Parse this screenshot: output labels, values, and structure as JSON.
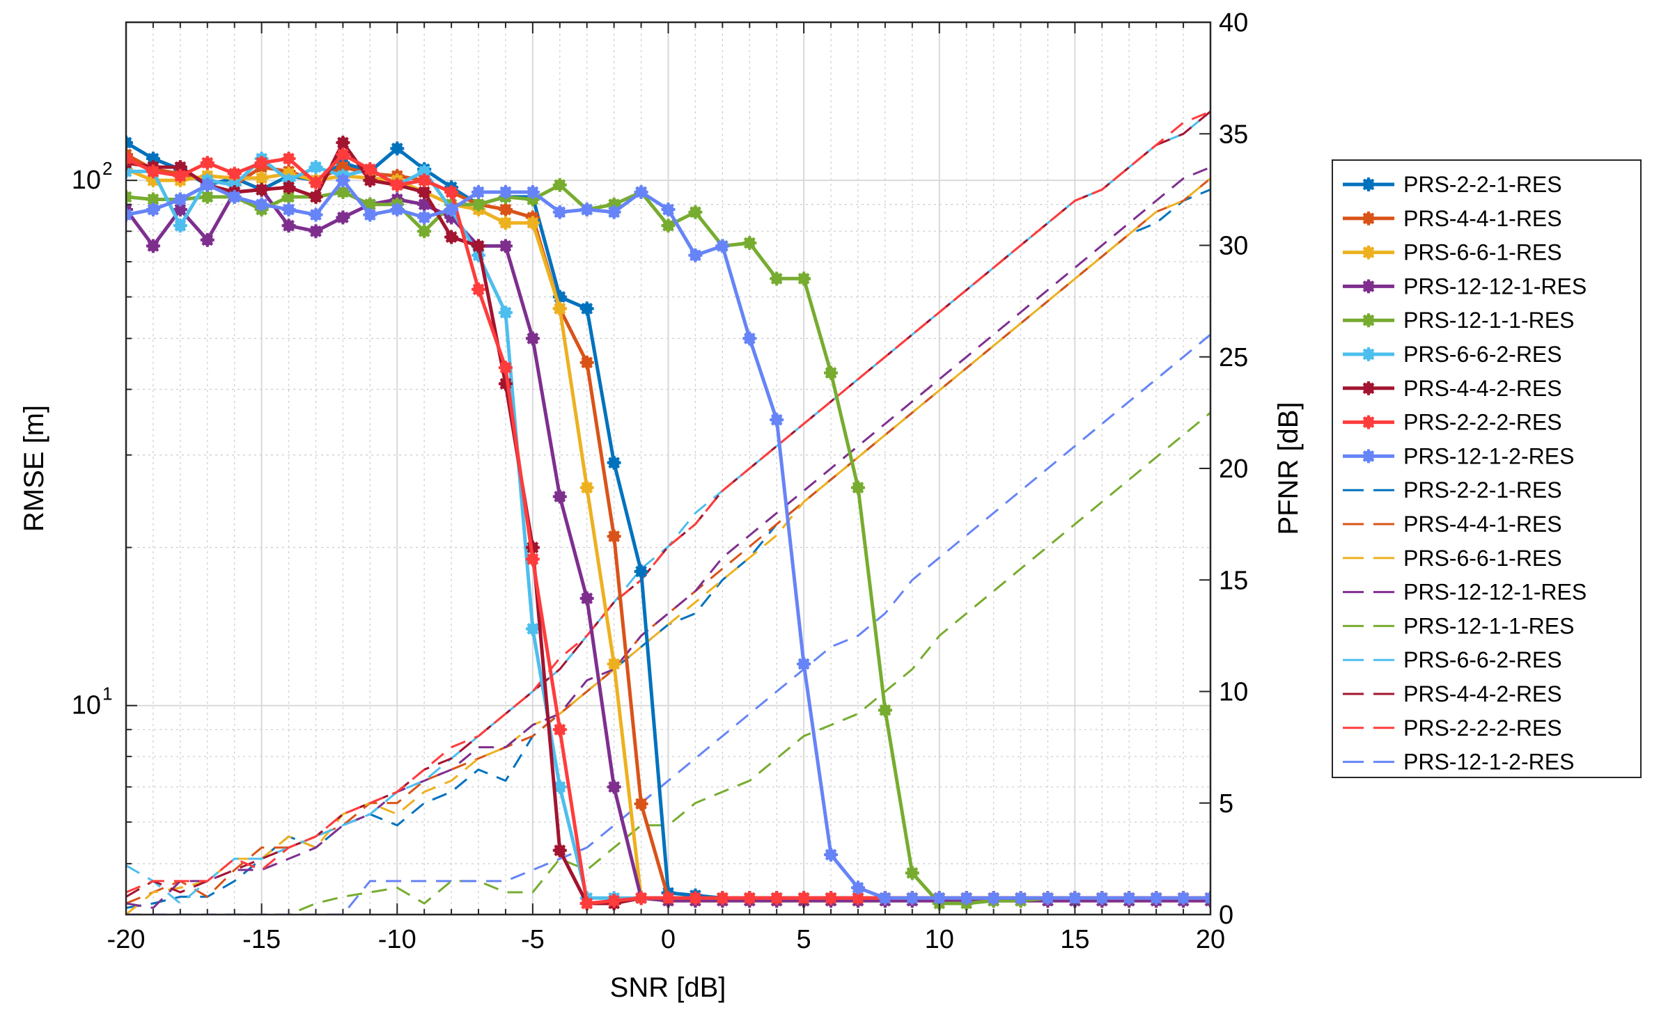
{
  "chart_data": {
    "type": "line",
    "title": "",
    "xlabel": "SNR [dB]",
    "ylabel_left": "RMSE [m]",
    "ylabel_right": "PFNR [dB]",
    "xlim": [
      -20,
      20
    ],
    "ylim_left": [
      4,
      200
    ],
    "yscale_left": "log",
    "ylim_right": [
      0,
      40
    ],
    "x_ticks": [
      -20,
      -15,
      -10,
      -5,
      0,
      5,
      10,
      15,
      20
    ],
    "x_tick_labels": [
      "-20",
      "-15",
      "-10",
      "-5",
      "0",
      "5",
      "10",
      "15",
      "20"
    ],
    "y_left_ticks": [
      10,
      100
    ],
    "y_left_tick_bases": [
      "10",
      "10"
    ],
    "y_left_tick_exps": [
      "1",
      "2"
    ],
    "y_right_ticks": [
      0,
      5,
      10,
      15,
      20,
      25,
      30,
      35,
      40
    ],
    "y_right_tick_labels": [
      "0",
      "5",
      "10",
      "15",
      "20",
      "25",
      "30",
      "35",
      "40"
    ],
    "grid": true,
    "legend_position": "outside-right",
    "x": [
      -20,
      -19,
      -18,
      -17,
      -16,
      -15,
      -14,
      -13,
      -12,
      -11,
      -10,
      -9,
      -8,
      -7,
      -6,
      -5,
      -4,
      -3,
      -2,
      -1,
      0,
      1,
      2,
      3,
      4,
      5,
      6,
      7,
      8,
      9,
      10,
      11,
      12,
      13,
      14,
      15,
      16,
      17,
      18,
      19,
      20
    ],
    "rmse_series": [
      {
        "name": "PRS-2-2-1-RES",
        "color": "#0072BD",
        "values": [
          118,
          110,
          105,
          98,
          101,
          96,
          102,
          100,
          108,
          104,
          115,
          105,
          97,
          90,
          93,
          93,
          60,
          57,
          29,
          18,
          4.4,
          4.35,
          4.3,
          4.3,
          4.3,
          4.3,
          4.3,
          4.3,
          4.3,
          4.3,
          4.3,
          4.3,
          4.3,
          4.3,
          4.3,
          4.3,
          4.3,
          4.3,
          4.3,
          4.3,
          4.3
        ]
      },
      {
        "name": "PRS-4-4-1-RES",
        "color": "#D95319",
        "values": [
          112,
          105,
          103,
          100,
          98,
          106,
          104,
          100,
          106,
          103,
          102,
          100,
          95,
          90,
          88,
          85,
          57,
          45,
          21,
          6.5,
          4.3,
          4.3,
          4.3,
          4.3,
          4.3,
          4.3,
          4.3,
          4.3,
          4.3,
          4.3,
          4.3,
          4.3,
          4.3,
          4.3,
          4.3,
          4.3,
          4.3,
          4.3,
          4.3,
          4.3,
          4.3
        ]
      },
      {
        "name": "PRS-6-6-1-RES",
        "color": "#EDB120",
        "values": [
          105,
          100,
          100,
          102,
          101,
          101,
          103,
          100,
          102,
          101,
          100,
          95,
          90,
          88,
          83,
          83,
          57,
          26,
          12,
          4.3,
          4.25,
          4.25,
          4.25,
          4.25,
          4.25,
          4.25,
          4.25,
          4.25,
          4.25,
          4.25,
          4.25,
          4.25,
          4.25,
          4.25,
          4.25,
          4.25,
          4.25,
          4.25,
          4.25,
          4.25,
          4.25
        ]
      },
      {
        "name": "PRS-12-12-1-RES",
        "color": "#7E2F8E",
        "values": [
          88,
          75,
          88,
          77,
          95,
          96,
          82,
          80,
          85,
          90,
          92,
          90,
          85,
          75,
          75,
          50,
          25,
          16,
          7,
          4.3,
          4.25,
          4.25,
          4.25,
          4.25,
          4.25,
          4.25,
          4.25,
          4.25,
          4.25,
          4.25,
          4.25,
          4.25,
          4.25,
          4.25,
          4.25,
          4.25,
          4.25,
          4.25,
          4.25,
          4.25,
          4.25
        ]
      },
      {
        "name": "PRS-12-1-1-RES",
        "color": "#77AC30",
        "values": [
          93,
          92,
          92,
          93,
          93,
          88,
          93,
          93,
          95,
          90,
          90,
          80,
          90,
          90,
          93,
          92,
          98,
          88,
          90,
          95,
          82,
          87,
          75,
          76,
          65,
          65,
          43,
          26,
          9.8,
          4.8,
          4.2,
          4.2,
          4.25,
          4.25,
          4.3,
          4.3,
          4.3,
          4.3,
          4.3,
          4.3,
          4.3
        ]
      },
      {
        "name": "PRS-6-6-2-RES",
        "color": "#4DBEEE",
        "values": [
          104,
          104,
          82,
          100,
          98,
          110,
          100,
          106,
          102,
          105,
          98,
          104,
          88,
          72,
          56,
          14,
          7,
          4.3,
          4.3,
          4.3,
          4.3,
          4.3,
          4.3,
          4.3,
          4.3,
          4.3,
          4.3,
          4.3,
          4.3,
          4.3,
          4.3,
          4.3,
          4.3,
          4.3,
          4.3,
          4.3,
          4.3,
          4.3,
          4.3,
          4.3,
          4.3
        ]
      },
      {
        "name": "PRS-4-4-2-RES",
        "color": "#A2142F",
        "values": [
          108,
          106,
          106,
          98,
          95,
          96,
          97,
          93,
          118,
          100,
          98,
          95,
          78,
          75,
          41,
          20,
          5.3,
          4.2,
          4.2,
          4.3,
          4.3,
          4.3,
          4.3,
          4.3,
          4.3,
          4.3,
          4.3,
          4.3,
          4.3,
          4.3,
          4.3,
          4.3,
          4.3,
          4.3,
          4.3,
          4.3,
          4.3,
          4.3,
          4.3,
          4.3,
          4.3
        ]
      },
      {
        "name": "PRS-2-2-2-RES",
        "color": "#FF3C3C",
        "values": [
          110,
          104,
          102,
          108,
          103,
          108,
          110,
          99,
          112,
          105,
          98,
          100,
          95,
          62,
          44,
          19,
          9,
          4.2,
          4.25,
          4.3,
          4.3,
          4.3,
          4.3,
          4.3,
          4.3,
          4.3,
          4.3,
          4.3,
          4.3,
          4.3,
          4.3,
          4.3,
          4.3,
          4.3,
          4.3,
          4.3,
          4.3,
          4.3,
          4.3,
          4.3,
          4.3
        ]
      },
      {
        "name": "PRS-12-1-2-RES",
        "color": "#6684F7",
        "values": [
          86,
          88,
          92,
          98,
          93,
          90,
          88,
          86,
          100,
          86,
          88,
          85,
          88,
          95,
          95,
          95,
          87,
          88,
          87,
          95,
          88,
          72,
          75,
          50,
          35,
          12,
          5.2,
          4.5,
          4.3,
          4.3,
          4.3,
          4.3,
          4.3,
          4.3,
          4.3,
          4.3,
          4.3,
          4.3,
          4.3,
          4.3,
          4.3
        ]
      }
    ],
    "pfnr_series": [
      {
        "name": "PRS-2-2-1-RES",
        "color": "#0072BD",
        "values": [
          0.3,
          0.5,
          0.8,
          0.8,
          1.5,
          2.5,
          3.5,
          3.0,
          4.0,
          4.5,
          4.0,
          5.0,
          5.5,
          6.5,
          6.0,
          8.0,
          9.0,
          10.0,
          11.0,
          12.0,
          13.0,
          13.5,
          15.0,
          16.0,
          17.5,
          18.5,
          19.5,
          20.5,
          21.5,
          22.5,
          23.5,
          24.5,
          25.5,
          26.5,
          27.5,
          28.5,
          29.5,
          30.5,
          31.0,
          32.0,
          32.5
        ]
      },
      {
        "name": "PRS-4-4-1-RES",
        "color": "#D95319",
        "values": [
          0.5,
          1.0,
          1.5,
          0.8,
          2.0,
          3.0,
          3.0,
          3.5,
          4.0,
          5.0,
          5.0,
          6.0,
          6.5,
          7.0,
          7.5,
          8.0,
          9.0,
          10.0,
          11.0,
          12.5,
          13.5,
          14.5,
          15.5,
          16.5,
          17.5,
          18.5,
          19.5,
          20.5,
          21.5,
          22.5,
          23.5,
          24.5,
          25.5,
          26.5,
          27.5,
          28.5,
          29.5,
          30.5,
          31.5,
          32.0,
          33.0
        ]
      },
      {
        "name": "PRS-6-6-1-RES",
        "color": "#EDB120",
        "values": [
          0.0,
          1.0,
          1.2,
          1.5,
          2.5,
          2.5,
          3.5,
          3.0,
          4.5,
          5.0,
          4.5,
          5.5,
          6.0,
          7.0,
          7.5,
          8.5,
          9.0,
          10.0,
          11.0,
          12.0,
          13.0,
          14.0,
          15.0,
          16.0,
          17.0,
          18.5,
          19.5,
          20.5,
          21.5,
          22.5,
          23.5,
          24.5,
          25.5,
          26.5,
          27.5,
          28.5,
          29.5,
          30.5,
          31.5,
          32.0,
          33.0
        ]
      },
      {
        "name": "PRS-12-12-1-RES",
        "color": "#7E2F8E",
        "values": [
          0.5,
          0.3,
          1.5,
          1.5,
          2.0,
          2.0,
          2.5,
          3.0,
          4.0,
          4.5,
          5.5,
          6.0,
          6.5,
          7.5,
          7.5,
          8.5,
          9.0,
          10.5,
          11.0,
          12.5,
          13.5,
          14.5,
          16.0,
          17.0,
          18.0,
          19.0,
          20.0,
          21.0,
          22.0,
          23.0,
          24.0,
          25.0,
          26.0,
          27.0,
          28.0,
          29.0,
          30.0,
          31.0,
          32.0,
          33.0,
          33.5
        ]
      },
      {
        "name": "PRS-12-1-1-RES",
        "color": "#77AC30",
        "values": [
          0.0,
          0.0,
          -0.3,
          0.0,
          0.0,
          0.0,
          0.0,
          0.5,
          0.8,
          1.0,
          1.2,
          0.5,
          1.5,
          1.5,
          1.0,
          1.0,
          2.5,
          2.0,
          3.0,
          4.0,
          4.0,
          5.0,
          5.5,
          6.0,
          7.0,
          8.0,
          8.5,
          9.0,
          10.0,
          11.0,
          12.5,
          13.5,
          14.5,
          15.5,
          16.5,
          17.5,
          18.5,
          19.5,
          20.5,
          21.5,
          22.5
        ]
      },
      {
        "name": "PRS-6-6-2-RES",
        "color": "#4DBEEE",
        "values": [
          2.2,
          1.5,
          0.5,
          1.5,
          2.5,
          2.5,
          3.0,
          3.5,
          4.0,
          4.5,
          5.5,
          6.0,
          7.0,
          8.0,
          9.0,
          10.0,
          11.0,
          12.5,
          14.0,
          15.5,
          16.5,
          18.0,
          19.0,
          20.0,
          21.0,
          22.0,
          23.0,
          24.0,
          25.0,
          26.0,
          27.0,
          28.0,
          29.0,
          30.0,
          31.0,
          32.0,
          32.5,
          33.5,
          34.5,
          35.0,
          36.0
        ]
      },
      {
        "name": "PRS-4-4-2-RES",
        "color": "#A2142F",
        "values": [
          0.8,
          1.5,
          1.0,
          1.5,
          2.0,
          2.5,
          3.0,
          3.5,
          4.5,
          5.0,
          5.5,
          6.5,
          7.0,
          8.0,
          9.0,
          10.0,
          11.0,
          12.5,
          14.0,
          15.0,
          16.5,
          17.5,
          19.0,
          20.0,
          21.0,
          22.0,
          23.0,
          24.0,
          25.0,
          26.0,
          27.0,
          28.0,
          29.0,
          30.0,
          31.0,
          32.0,
          32.5,
          33.5,
          34.5,
          35.0,
          36.0
        ]
      },
      {
        "name": "PRS-2-2-2-RES",
        "color": "#FF3C3C",
        "values": [
          1.0,
          1.5,
          1.5,
          1.5,
          2.5,
          2.0,
          3.0,
          3.5,
          4.5,
          5.0,
          5.5,
          6.5,
          7.5,
          8.0,
          9.0,
          10.0,
          11.5,
          12.5,
          14.0,
          15.0,
          16.5,
          17.5,
          19.0,
          20.0,
          21.0,
          22.0,
          23.0,
          24.0,
          25.0,
          26.0,
          27.0,
          28.0,
          29.0,
          30.0,
          31.0,
          32.0,
          32.5,
          33.5,
          34.5,
          35.5,
          36.0
        ]
      },
      {
        "name": "PRS-12-1-2-RES",
        "color": "#6684F7",
        "values": [
          0.0,
          0.0,
          0.0,
          0.0,
          0.0,
          0.0,
          0.0,
          0.0,
          0.0,
          1.5,
          1.5,
          1.5,
          1.5,
          1.5,
          1.5,
          2.0,
          2.5,
          3.0,
          4.0,
          5.0,
          6.0,
          7.0,
          8.0,
          9.0,
          10.0,
          11.0,
          12.0,
          12.5,
          13.5,
          15.0,
          16.0,
          17.0,
          18.0,
          19.0,
          20.0,
          21.0,
          22.0,
          23.0,
          24.0,
          25.0,
          26.0
        ]
      }
    ]
  }
}
